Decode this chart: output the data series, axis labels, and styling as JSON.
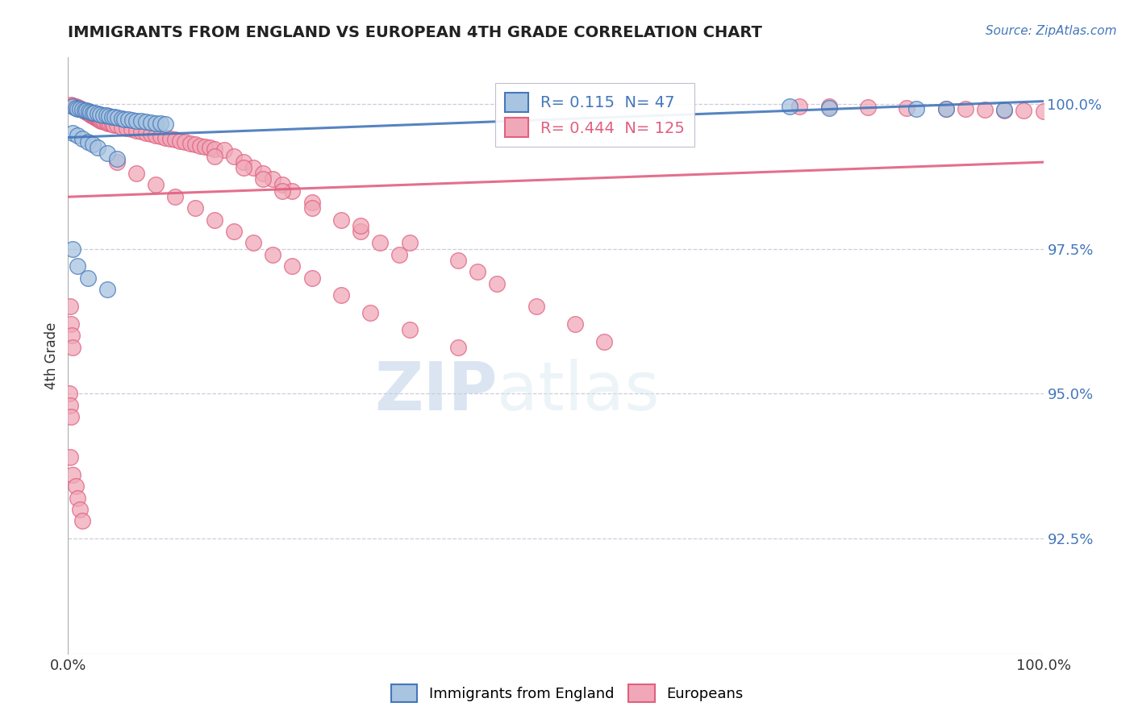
{
  "title": "IMMIGRANTS FROM ENGLAND VS EUROPEAN 4TH GRADE CORRELATION CHART",
  "source_text": "Source: ZipAtlas.com",
  "ylabel": "4th Grade",
  "legend_label_blue": "Immigrants from England",
  "legend_label_pink": "Europeans",
  "R_blue": 0.115,
  "N_blue": 47,
  "R_pink": 0.444,
  "N_pink": 125,
  "xlim": [
    0.0,
    1.0
  ],
  "ylim": [
    0.905,
    1.008
  ],
  "yticks": [
    0.925,
    0.95,
    0.975,
    1.0
  ],
  "ytick_labels": [
    "92.5%",
    "95.0%",
    "97.5%",
    "100.0%"
  ],
  "xtick_labels": [
    "0.0%",
    "100.0%"
  ],
  "xticks": [
    0.0,
    1.0
  ],
  "color_blue": "#A8C4E0",
  "color_pink": "#F0A8B8",
  "line_color_blue": "#4477BB",
  "line_color_pink": "#E06080",
  "background_color": "#FFFFFF",
  "grid_color": "#CCCCDD",
  "watermark_zip": "ZIP",
  "watermark_atlas": "atlas"
}
